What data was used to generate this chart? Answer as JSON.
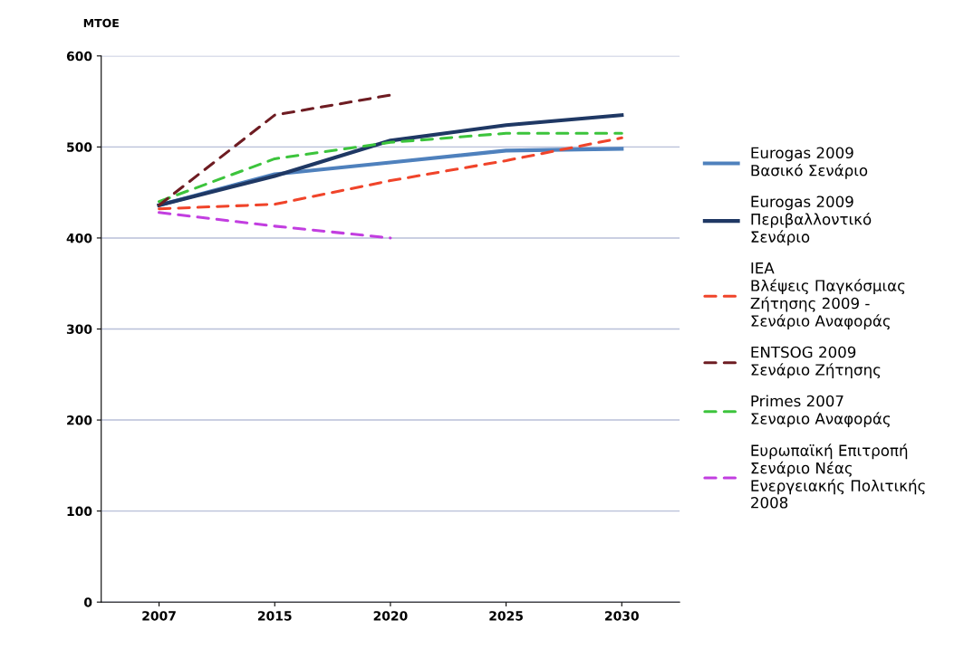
{
  "chart_data": {
    "type": "line",
    "ylabel": "MTOE",
    "categories": [
      "2007",
      "2015",
      "2020",
      "2025",
      "2030"
    ],
    "ylim": [
      0,
      600
    ],
    "yticks": [
      0,
      100,
      200,
      300,
      400,
      500,
      600
    ],
    "grid": "y",
    "legend": "right",
    "marker": "none",
    "series": [
      {
        "name": "Eurogas 2009\nΒασικό Σενάριο",
        "color": "#4f81bd",
        "line_style": "solid",
        "values": [
          436,
          470,
          483,
          496,
          498
        ]
      },
      {
        "name": "Eurogas 2009\nΠεριβαλλοντικό\nΣενάριο",
        "color": "#1f3864",
        "line_style": "solid",
        "values": [
          436,
          468,
          507,
          524,
          535
        ]
      },
      {
        "name": "IEA\nΒλέψεις Παγκόσμιας\nΖήτησης 2009 -\nΣενάριο Αναφοράς",
        "color": "#f0442a",
        "line_style": "dashed",
        "values": [
          432,
          437,
          463,
          485,
          510
        ]
      },
      {
        "name": "ENTSOG 2009\nΣενάριο Ζήτησης",
        "color": "#6e1c22",
        "line_style": "dashed",
        "values": [
          436,
          535,
          557,
          null,
          null
        ]
      },
      {
        "name": "Primes 2007\nΣεναριο Αναφοράς",
        "color": "#3cc43c",
        "line_style": "dashed",
        "values": [
          440,
          487,
          505,
          515,
          515
        ]
      },
      {
        "name": "Ευρωπαϊκή Επιτροπή\nΣενάριο Νέας\nΕνεργειακής Πολιτικής\n2008",
        "color": "#c23ee0",
        "line_style": "dashed",
        "values": [
          428,
          413,
          400,
          null,
          null
        ]
      }
    ]
  }
}
